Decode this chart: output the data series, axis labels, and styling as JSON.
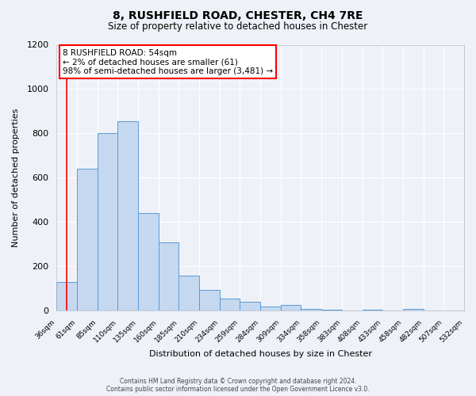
{
  "title": "8, RUSHFIELD ROAD, CHESTER, CH4 7RE",
  "subtitle": "Size of property relative to detached houses in Chester",
  "xlabel": "Distribution of detached houses by size in Chester",
  "ylabel": "Number of detached properties",
  "bar_values": [
    130,
    640,
    800,
    855,
    440,
    310,
    160,
    95,
    55,
    40,
    20,
    25,
    10,
    5,
    0,
    5,
    0,
    10,
    0,
    0
  ],
  "bin_labels": [
    "36sqm",
    "61sqm",
    "85sqm",
    "110sqm",
    "135sqm",
    "160sqm",
    "185sqm",
    "210sqm",
    "234sqm",
    "259sqm",
    "284sqm",
    "309sqm",
    "334sqm",
    "358sqm",
    "383sqm",
    "408sqm",
    "433sqm",
    "458sqm",
    "482sqm",
    "507sqm",
    "532sqm"
  ],
  "bar_color": "#c5d8f0",
  "bar_edge_color": "#5b9bd5",
  "ylim": [
    0,
    1200
  ],
  "yticks": [
    0,
    200,
    400,
    600,
    800,
    1000,
    1200
  ],
  "property_line_x": 0.5,
  "annotation_title": "8 RUSHFIELD ROAD: 54sqm",
  "annotation_line1": "← 2% of detached houses are smaller (61)",
  "annotation_line2": "98% of semi-detached houses are larger (3,481) →",
  "footer_line1": "Contains HM Land Registry data © Crown copyright and database right 2024.",
  "footer_line2": "Contains public sector information licensed under the Open Government Licence v3.0.",
  "bg_color": "#eef2f8",
  "plot_bg_color": "#eef2f8",
  "grid_color": "#ffffff"
}
